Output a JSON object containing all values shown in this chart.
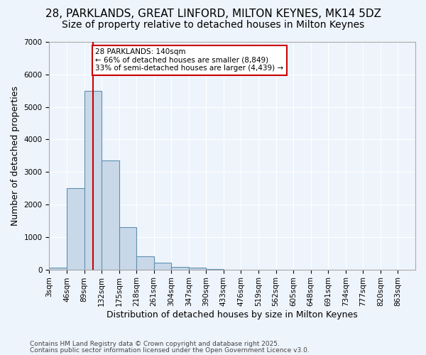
{
  "title_line1": "28, PARKLANDS, GREAT LINFORD, MILTON KEYNES, MK14 5DZ",
  "title_line2": "Size of property relative to detached houses in Milton Keynes",
  "xlabel": "Distribution of detached houses by size in Milton Keynes",
  "ylabel": "Number of detached properties",
  "footnote1": "Contains HM Land Registry data © Crown copyright and database right 2025.",
  "footnote2": "Contains public sector information licensed under the Open Government Licence v3.0.",
  "bin_labels": [
    "3sqm",
    "46sqm",
    "89sqm",
    "132sqm",
    "175sqm",
    "218sqm",
    "261sqm",
    "304sqm",
    "347sqm",
    "390sqm",
    "433sqm",
    "476sqm",
    "519sqm",
    "562sqm",
    "605sqm",
    "648sqm",
    "691sqm",
    "734sqm",
    "777sqm",
    "820sqm",
    "863sqm"
  ],
  "bar_values": [
    50,
    2500,
    5500,
    3350,
    1300,
    400,
    200,
    75,
    50,
    5,
    0,
    0,
    0,
    0,
    0,
    0,
    0,
    0,
    0,
    0
  ],
  "bar_color": "#c8d8e8",
  "bar_edge_color": "#6090b0",
  "annotation_text": "28 PARKLANDS: 140sqm\n← 66% of detached houses are smaller (8,849)\n33% of semi-detached houses are larger (4,439) →",
  "annotation_box_color": "#ffffff",
  "annotation_box_edge": "#cc0000",
  "vline_color": "#cc0000",
  "vline_x": 2.5,
  "ylim": [
    0,
    7000
  ],
  "yticks": [
    0,
    1000,
    2000,
    3000,
    4000,
    5000,
    6000,
    7000
  ],
  "bg_color": "#eef4fb",
  "grid_color": "#ffffff",
  "title_fontsize": 11,
  "subtitle_fontsize": 10,
  "axis_fontsize": 9,
  "tick_fontsize": 7.5,
  "footnote_fontsize": 6.5
}
